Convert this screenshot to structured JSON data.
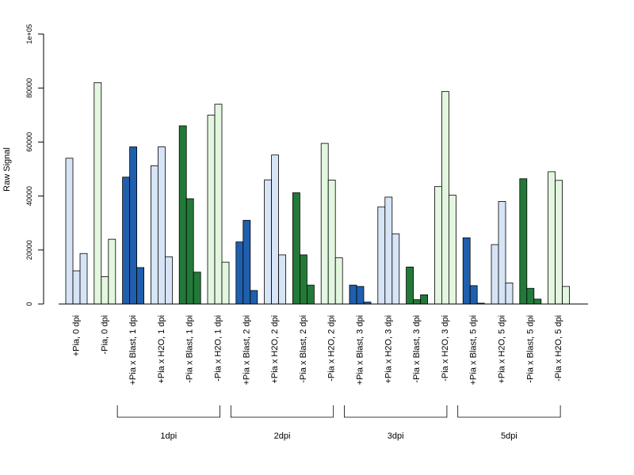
{
  "chart_data": {
    "type": "bar",
    "title": "",
    "xlabel": "",
    "ylabel": "Raw Signal",
    "ylim": [
      0,
      100000
    ],
    "y_ticks": [
      0,
      20000,
      40000,
      60000,
      80000,
      100000
    ],
    "y_tick_labels": [
      "0",
      "20000",
      "40000",
      "60000",
      "80000",
      "1e+05"
    ],
    "grid": false,
    "legend": "none",
    "categories": [
      "+Pia, 0 dpi",
      "-Pia, 0 dpi",
      "+Pia x Blast, 1 dpi",
      "+Pia x H2O, 1 dpi",
      "-Pia x Blast, 1 dpi",
      "-Pia x H2O, 1 dpi",
      "+Pia x Blast, 2 dpi",
      "+Pia x H2O, 2 dpi",
      "-Pia x Blast, 2 dpi",
      "-Pia x H2O, 2 dpi",
      "+Pia x Blast, 3 dpi",
      "+Pia x H2O, 3 dpi",
      "-Pia x Blast, 3 dpi",
      "-Pia x H2O, 3 dpi",
      "+Pia x Blast, 5 dpi",
      "+Pia x H2O, 5 dpi",
      "-Pia x Blast, 5 dpi",
      "-Pia x H2O, 5 dpi"
    ],
    "group_colors": [
      "#d6e4f5",
      "#e3f6df",
      "#1f5fad",
      "#d6e4f5",
      "#237a38",
      "#e3f6df",
      "#1f5fad",
      "#d6e4f5",
      "#237a38",
      "#e3f6df",
      "#1f5fad",
      "#d6e4f5",
      "#237a38",
      "#e3f6df",
      "#1f5fad",
      "#d6e4f5",
      "#237a38",
      "#e3f6df"
    ],
    "series": [
      {
        "values": [
          54000,
          82000,
          47000,
          51200,
          66000,
          70000,
          23000,
          46000,
          41200,
          59500,
          7000,
          36000,
          13700,
          43500,
          24500,
          22000,
          46400,
          49000
        ]
      },
      {
        "values": [
          12300,
          10100,
          58200,
          58200,
          39000,
          74000,
          31000,
          55200,
          18200,
          45900,
          6500,
          39600,
          1600,
          78700,
          6800,
          38000,
          5800,
          45800
        ]
      },
      {
        "values": [
          18700,
          24000,
          13500,
          17500,
          11800,
          15500,
          5000,
          18200,
          7000,
          17100,
          700,
          26000,
          3400,
          40300,
          300,
          7800,
          1800,
          6500
        ]
      }
    ],
    "groups": [
      {
        "label": "1dpi",
        "from": 2,
        "to": 5
      },
      {
        "label": "2dpi",
        "from": 6,
        "to": 9
      },
      {
        "label": "3dpi",
        "from": 10,
        "to": 13
      },
      {
        "label": "5dpi",
        "from": 14,
        "to": 17
      }
    ]
  }
}
